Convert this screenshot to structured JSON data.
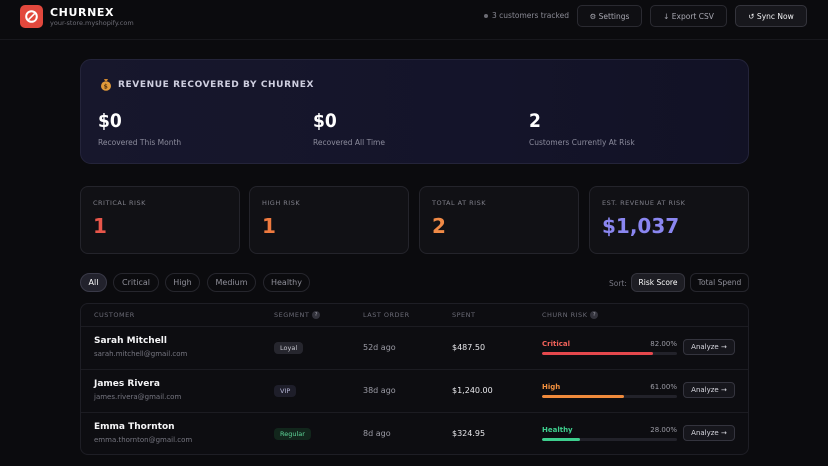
{
  "header": {
    "brand": "CHURNEX",
    "store_url": "your-store.myshopify.com",
    "tracked_text": "3 customers tracked",
    "settings_label": "⚙ Settings",
    "export_label": "↓ Export CSV",
    "sync_label": "↺ Sync Now"
  },
  "revenue": {
    "title": "REVENUE RECOVERED BY CHURNEX",
    "stats": [
      {
        "value": "$0",
        "label": "Recovered This Month"
      },
      {
        "value": "$0",
        "label": "Recovered All Time"
      },
      {
        "value": "2",
        "label": "Customers Currently At Risk"
      }
    ]
  },
  "cards": [
    {
      "label": "CRITICAL RISK",
      "value": "1",
      "color": "#e8564a"
    },
    {
      "label": "HIGH RISK",
      "value": "1",
      "color": "#ef7a3f"
    },
    {
      "label": "TOTAL AT RISK",
      "value": "2",
      "color": "#f08a46"
    },
    {
      "label": "EST. REVENUE AT RISK",
      "value": "$1,037",
      "color": "#8a86f0"
    }
  ],
  "filters": [
    "All",
    "Critical",
    "High",
    "Medium",
    "Healthy"
  ],
  "sort": {
    "label": "Sort:",
    "options": [
      "Risk Score",
      "Total Spend"
    ]
  },
  "table": {
    "headers": [
      "CUSTOMER",
      "SEGMENT",
      "LAST ORDER",
      "SPENT",
      "CHURN RISK"
    ],
    "rows": [
      {
        "name": "Sarah Mitchell",
        "email": "sarah.mitchell@gmail.com",
        "segment": "Loyal",
        "last_order": "52d ago",
        "spent": "$487.50",
        "risk_label": "Critical",
        "risk_pct": "82.00%",
        "risk_value": 0.82,
        "risk_color": "#e5484d",
        "action": "Analyze →"
      },
      {
        "name": "James Rivera",
        "email": "james.rivera@gmail.com",
        "segment": "VIP",
        "last_order": "38d ago",
        "spent": "$1,240.00",
        "risk_label": "High",
        "risk_pct": "61.00%",
        "risk_value": 0.61,
        "risk_color": "#f08a3c",
        "action": "Analyze →"
      },
      {
        "name": "Emma Thornton",
        "email": "emma.thornton@gmail.com",
        "segment": "Regular",
        "last_order": "8d ago",
        "spent": "$324.95",
        "risk_label": "Healthy",
        "risk_pct": "28.00%",
        "risk_value": 0.28,
        "risk_color": "#3ecf8e",
        "action": "Analyze →"
      }
    ]
  },
  "colors": {
    "brand": "#e2483d",
    "segment_loyal_bg": "#26262e",
    "segment_vip_bg": "#1e1e2a",
    "segment_regular_bg": "#12261c"
  }
}
